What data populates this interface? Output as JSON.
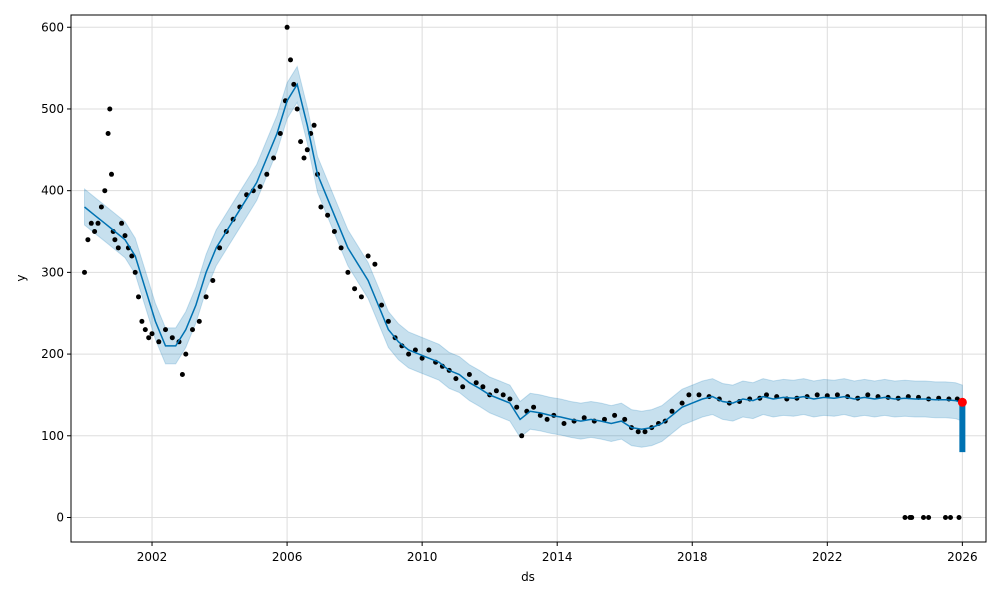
{
  "chart_data": {
    "type": "scatter",
    "title": "",
    "xlabel": "ds",
    "ylabel": "y",
    "xlim": [
      1999.6,
      2026.7
    ],
    "ylim": [
      -30,
      615
    ],
    "grid": true,
    "x_ticks": [
      {
        "value": 2002,
        "label": "2002"
      },
      {
        "value": 2006,
        "label": "2006"
      },
      {
        "value": 2010,
        "label": "2010"
      },
      {
        "value": 2014,
        "label": "2014"
      },
      {
        "value": 2018,
        "label": "2018"
      },
      {
        "value": 2022,
        "label": "2022"
      },
      {
        "value": 2026,
        "label": "2026"
      }
    ],
    "y_ticks": [
      {
        "value": 0,
        "label": "0"
      },
      {
        "value": 100,
        "label": "100"
      },
      {
        "value": 200,
        "label": "200"
      },
      {
        "value": 300,
        "label": "300"
      },
      {
        "value": 400,
        "label": "400"
      },
      {
        "value": 500,
        "label": "500"
      },
      {
        "value": 600,
        "label": "600"
      }
    ],
    "colors": {
      "observed": "#000000",
      "forecast": "#0072B2",
      "uncertainty": "#0072B2",
      "highlight": "#ff0000",
      "grid": "#dddddd"
    },
    "observed": {
      "x": [
        2000.0,
        2000.1,
        2000.2,
        2000.3,
        2000.4,
        2000.5,
        2000.6,
        2000.7,
        2000.75,
        2000.8,
        2000.85,
        2000.9,
        2001.0,
        2001.1,
        2001.2,
        2001.3,
        2001.4,
        2001.5,
        2001.6,
        2001.7,
        2001.8,
        2001.9,
        2002.0,
        2002.2,
        2002.4,
        2002.6,
        2002.8,
        2002.9,
        2003.0,
        2003.2,
        2003.4,
        2003.6,
        2003.8,
        2004.0,
        2004.2,
        2004.4,
        2004.6,
        2004.8,
        2005.0,
        2005.2,
        2005.4,
        2005.6,
        2005.8,
        2005.95,
        2006.0,
        2006.1,
        2006.2,
        2006.3,
        2006.4,
        2006.5,
        2006.6,
        2006.7,
        2006.8,
        2006.9,
        2007.0,
        2007.2,
        2007.4,
        2007.6,
        2007.8,
        2008.0,
        2008.2,
        2008.4,
        2008.6,
        2008.8,
        2009.0,
        2009.2,
        2009.4,
        2009.6,
        2009.8,
        2010.0,
        2010.2,
        2010.4,
        2010.6,
        2010.8,
        2011.0,
        2011.2,
        2011.4,
        2011.6,
        2011.8,
        2012.0,
        2012.2,
        2012.4,
        2012.6,
        2012.8,
        2012.95,
        2013.1,
        2013.3,
        2013.5,
        2013.7,
        2013.9,
        2014.2,
        2014.5,
        2014.8,
        2015.1,
        2015.4,
        2015.7,
        2016.0,
        2016.2,
        2016.4,
        2016.6,
        2016.8,
        2017.0,
        2017.2,
        2017.4,
        2017.7,
        2017.9,
        2018.2,
        2018.5,
        2018.8,
        2019.1,
        2019.4,
        2019.7,
        2020.0,
        2020.2,
        2020.5,
        2020.8,
        2021.1,
        2021.4,
        2021.7,
        2022.0,
        2022.3,
        2022.6,
        2022.9,
        2023.2,
        2023.5,
        2023.8,
        2024.1,
        2024.4,
        2024.7,
        2025.0,
        2025.3,
        2025.6,
        2025.85,
        2024.3,
        2024.45,
        2024.5,
        2024.85,
        2025.0,
        2025.5,
        2025.65,
        2025.9
      ],
      "y": [
        300,
        340,
        360,
        350,
        360,
        380,
        400,
        470,
        500,
        420,
        350,
        340,
        330,
        360,
        345,
        330,
        320,
        300,
        270,
        240,
        230,
        220,
        225,
        215,
        230,
        220,
        215,
        175,
        200,
        230,
        240,
        270,
        290,
        330,
        350,
        365,
        380,
        395,
        400,
        405,
        420,
        440,
        470,
        510,
        600,
        560,
        530,
        500,
        460,
        440,
        450,
        470,
        480,
        420,
        380,
        370,
        350,
        330,
        300,
        280,
        270,
        320,
        310,
        260,
        240,
        220,
        210,
        200,
        205,
        195,
        205,
        190,
        185,
        180,
        170,
        160,
        175,
        165,
        160,
        150,
        155,
        150,
        145,
        135,
        100,
        130,
        135,
        125,
        120,
        125,
        115,
        118,
        122,
        118,
        120,
        125,
        120,
        110,
        105,
        105,
        110,
        115,
        118,
        130,
        140,
        150,
        150,
        148,
        145,
        140,
        142,
        145,
        146,
        150,
        148,
        145,
        146,
        148,
        150,
        149,
        150,
        148,
        146,
        150,
        148,
        147,
        146,
        148,
        147,
        145,
        146,
        145,
        145,
        0,
        0,
        0,
        0,
        0,
        0,
        0,
        0
      ]
    },
    "forecast": {
      "x": [
        2000.0,
        2000.3,
        2000.6,
        2000.9,
        2001.2,
        2001.5,
        2001.8,
        2002.1,
        2002.4,
        2002.7,
        2003.0,
        2003.3,
        2003.6,
        2003.9,
        2004.2,
        2004.5,
        2004.8,
        2005.1,
        2005.4,
        2005.7,
        2006.0,
        2006.3,
        2006.6,
        2006.9,
        2007.2,
        2007.5,
        2007.8,
        2008.1,
        2008.4,
        2008.7,
        2009.0,
        2009.3,
        2009.6,
        2009.9,
        2010.2,
        2010.5,
        2010.8,
        2011.1,
        2011.4,
        2011.7,
        2012.0,
        2012.3,
        2012.6,
        2012.9,
        2013.2,
        2013.5,
        2013.8,
        2014.1,
        2014.4,
        2014.7,
        2015.0,
        2015.3,
        2015.6,
        2015.9,
        2016.2,
        2016.5,
        2016.8,
        2017.1,
        2017.4,
        2017.7,
        2018.0,
        2018.3,
        2018.6,
        2018.9,
        2019.2,
        2019.5,
        2019.8,
        2020.1,
        2020.4,
        2020.7,
        2021.0,
        2021.3,
        2021.6,
        2021.9,
        2022.2,
        2022.5,
        2022.8,
        2023.1,
        2023.4,
        2023.7,
        2024.0,
        2024.3,
        2024.6,
        2024.9,
        2025.2,
        2025.5,
        2025.8,
        2026.0
      ],
      "y": [
        380,
        370,
        360,
        350,
        340,
        320,
        280,
        240,
        210,
        210,
        230,
        260,
        300,
        330,
        350,
        370,
        390,
        410,
        440,
        470,
        510,
        530,
        480,
        420,
        390,
        360,
        330,
        310,
        290,
        260,
        230,
        215,
        205,
        200,
        195,
        190,
        180,
        175,
        165,
        158,
        150,
        145,
        140,
        120,
        130,
        128,
        125,
        123,
        120,
        118,
        120,
        118,
        115,
        118,
        110,
        108,
        110,
        115,
        125,
        135,
        140,
        145,
        148,
        142,
        140,
        145,
        143,
        148,
        145,
        147,
        146,
        148,
        145,
        147,
        146,
        148,
        145,
        147,
        145,
        147,
        145,
        146,
        145,
        145,
        144,
        144,
        143,
        140
      ]
    },
    "uncertainty_halfwidth": 22,
    "forecast_tail": {
      "x": 2026.0,
      "y_low": 80,
      "y_high": 140
    },
    "highlight_point": {
      "x": 2026.0,
      "y": 141
    }
  }
}
